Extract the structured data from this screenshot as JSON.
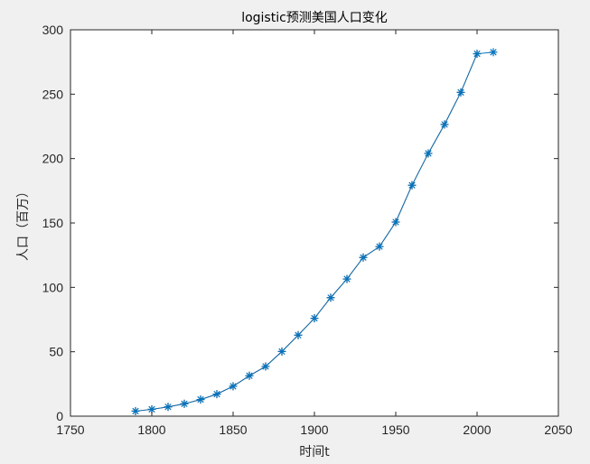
{
  "chart_data": {
    "type": "line",
    "title": "logistic预测美国人口变化",
    "xlabel": "时间t",
    "ylabel": "人口（百万）",
    "xlim": [
      1750,
      2050
    ],
    "ylim": [
      0,
      300
    ],
    "xticks": [
      1750,
      1800,
      1850,
      1900,
      1950,
      2000,
      2050
    ],
    "yticks": [
      0,
      50,
      100,
      150,
      200,
      250,
      300
    ],
    "grid": false,
    "legend": "none",
    "series": [
      {
        "marker": "asterisk",
        "color": "#0072BD",
        "x": [
          1790,
          1800,
          1810,
          1820,
          1830,
          1840,
          1850,
          1860,
          1870,
          1880,
          1890,
          1900,
          1910,
          1920,
          1930,
          1940,
          1950,
          1960,
          1970,
          1980,
          1990,
          2000,
          2010
        ],
        "values": [
          3.9,
          5.3,
          7.2,
          9.6,
          12.9,
          17.1,
          23.2,
          31.4,
          38.6,
          50.2,
          62.9,
          76.0,
          92.0,
          106.5,
          123.2,
          131.7,
          150.7,
          179.3,
          204.0,
          226.5,
          251.4,
          281.4,
          282.6
        ]
      },
      {
        "marker": "plus",
        "color": "#D95319",
        "x": [
          1790,
          1800,
          1810,
          1820,
          1830,
          1840,
          1850,
          1860,
          1870,
          1880,
          1890,
          1900,
          1910,
          1920,
          1930,
          1940,
          1950,
          1960,
          1970,
          1980,
          1990,
          2000
        ],
        "values": [
          3.9,
          5.3,
          7.2,
          9.6,
          12.9,
          17.1,
          23.2,
          31.4,
          38.6,
          50.2,
          62.9,
          76.0,
          92.0,
          106.5,
          123.2,
          131.7,
          150.7,
          179.3,
          204.0,
          226.5,
          251.4,
          281.4
        ]
      }
    ]
  }
}
